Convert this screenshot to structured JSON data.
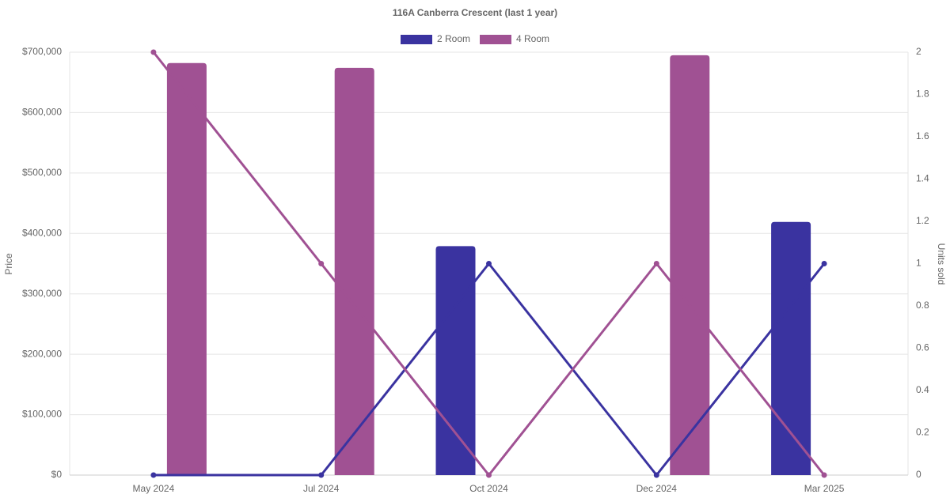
{
  "chart_data": {
    "type": "bar-line",
    "title": "116A Canberra Crescent (last 1 year)",
    "categories": [
      "May 2024",
      "Jul 2024",
      "Oct 2024",
      "Dec 2024",
      "Mar 2025"
    ],
    "y_label": "Price",
    "y2_label": "Units sold",
    "series": [
      {
        "name": "2 Room",
        "color": "#3a33a0",
        "values": [
          null,
          null,
          379000,
          null,
          419000
        ],
        "units_sold": [
          0,
          0,
          1,
          0,
          1
        ]
      },
      {
        "name": "4 Room",
        "color": "#a05193",
        "values": [
          682000,
          674000,
          null,
          695000,
          null
        ],
        "units_sold": [
          2,
          1,
          0,
          1,
          0
        ]
      }
    ],
    "ylim": [
      0,
      700000
    ],
    "yticks": [
      {
        "value": 0,
        "label": "$0"
      },
      {
        "value": 100000,
        "label": "$100,000"
      },
      {
        "value": 200000,
        "label": "$200,000"
      },
      {
        "value": 300000,
        "label": "$300,000"
      },
      {
        "value": 400000,
        "label": "$400,000"
      },
      {
        "value": 500000,
        "label": "$500,000"
      },
      {
        "value": 600000,
        "label": "$600,000"
      },
      {
        "value": 700000,
        "label": "$700,000"
      }
    ],
    "y2lim": [
      0,
      2
    ],
    "y2ticks": [
      0,
      0.2,
      0.4,
      0.6,
      0.8,
      1,
      1.2,
      1.4,
      1.6,
      1.8,
      2
    ],
    "grid": true,
    "legend": "top"
  }
}
